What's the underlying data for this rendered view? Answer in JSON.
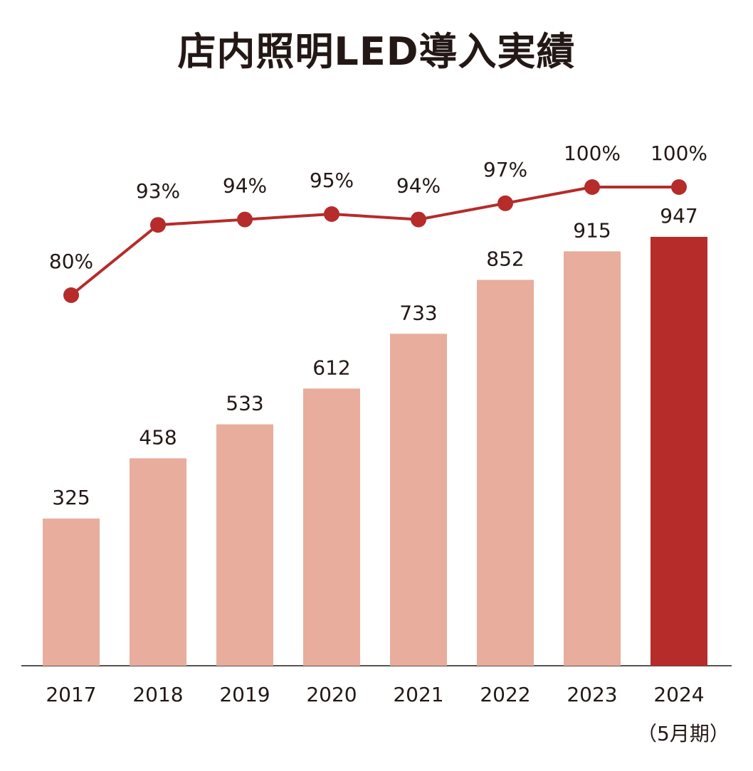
{
  "title": "店内照明LED導入実績",
  "note": "（5月期）",
  "colors": {
    "bar": "#e8ad9c",
    "bar_highlight": "#b52c2a",
    "line": "#b52c2a",
    "text": "#231815",
    "axis": "#231815"
  },
  "chart_data": {
    "type": "bar",
    "categories": [
      "2017",
      "2018",
      "2019",
      "2020",
      "2021",
      "2022",
      "2023",
      "2024"
    ],
    "series": [
      {
        "type": "bar",
        "values": [
          325,
          458,
          533,
          612,
          733,
          852,
          915,
          947
        ],
        "labels": [
          "325",
          "458",
          "533",
          "612",
          "733",
          "852",
          "915",
          "947"
        ],
        "highlight_index": 7
      },
      {
        "type": "line",
        "values": [
          80,
          93,
          94,
          95,
          94,
          97,
          100,
          100
        ],
        "labels": [
          "80%",
          "93%",
          "94%",
          "95%",
          "94%",
          "97%",
          "100%",
          "100%"
        ]
      }
    ],
    "title": "店内照明LED導入実績",
    "xlabel": "",
    "ylabel": "",
    "grid": false
  }
}
